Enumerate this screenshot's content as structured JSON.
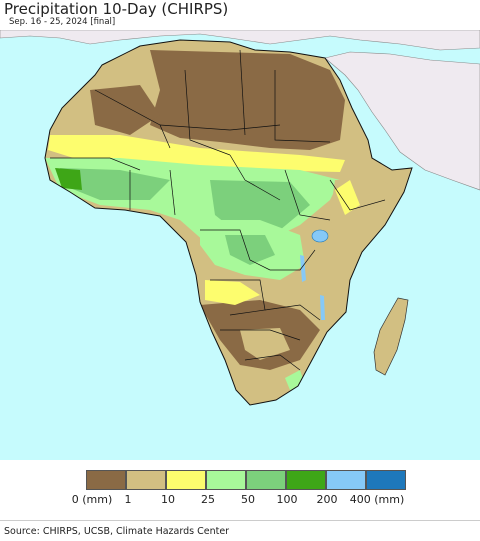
{
  "header": {
    "title": "Precipitation 10-Day (CHIRPS)",
    "subtitle": "Sep. 16 - 25, 2024 [final]"
  },
  "map": {
    "region": "Africa",
    "ocean_color": "#c6fbfd",
    "other_land_color": "#efeaf0"
  },
  "legend": {
    "bins": [
      {
        "color": "#8a6a45",
        "label": "0 (mm)"
      },
      {
        "color": "#d2bf82",
        "label": "1"
      },
      {
        "color": "#fdfd6e",
        "label": "10"
      },
      {
        "color": "#a8f99a",
        "label": "25"
      },
      {
        "color": "#7cd07c",
        "label": "50"
      },
      {
        "color": "#3ea617",
        "label": "100"
      },
      {
        "color": "#86c9f7",
        "label": "200"
      },
      {
        "color": "#1e78bb",
        "label": "400 (mm)"
      }
    ]
  },
  "footer": {
    "source": "Source: CHIRPS, UCSB, Climate Hazards Center"
  }
}
